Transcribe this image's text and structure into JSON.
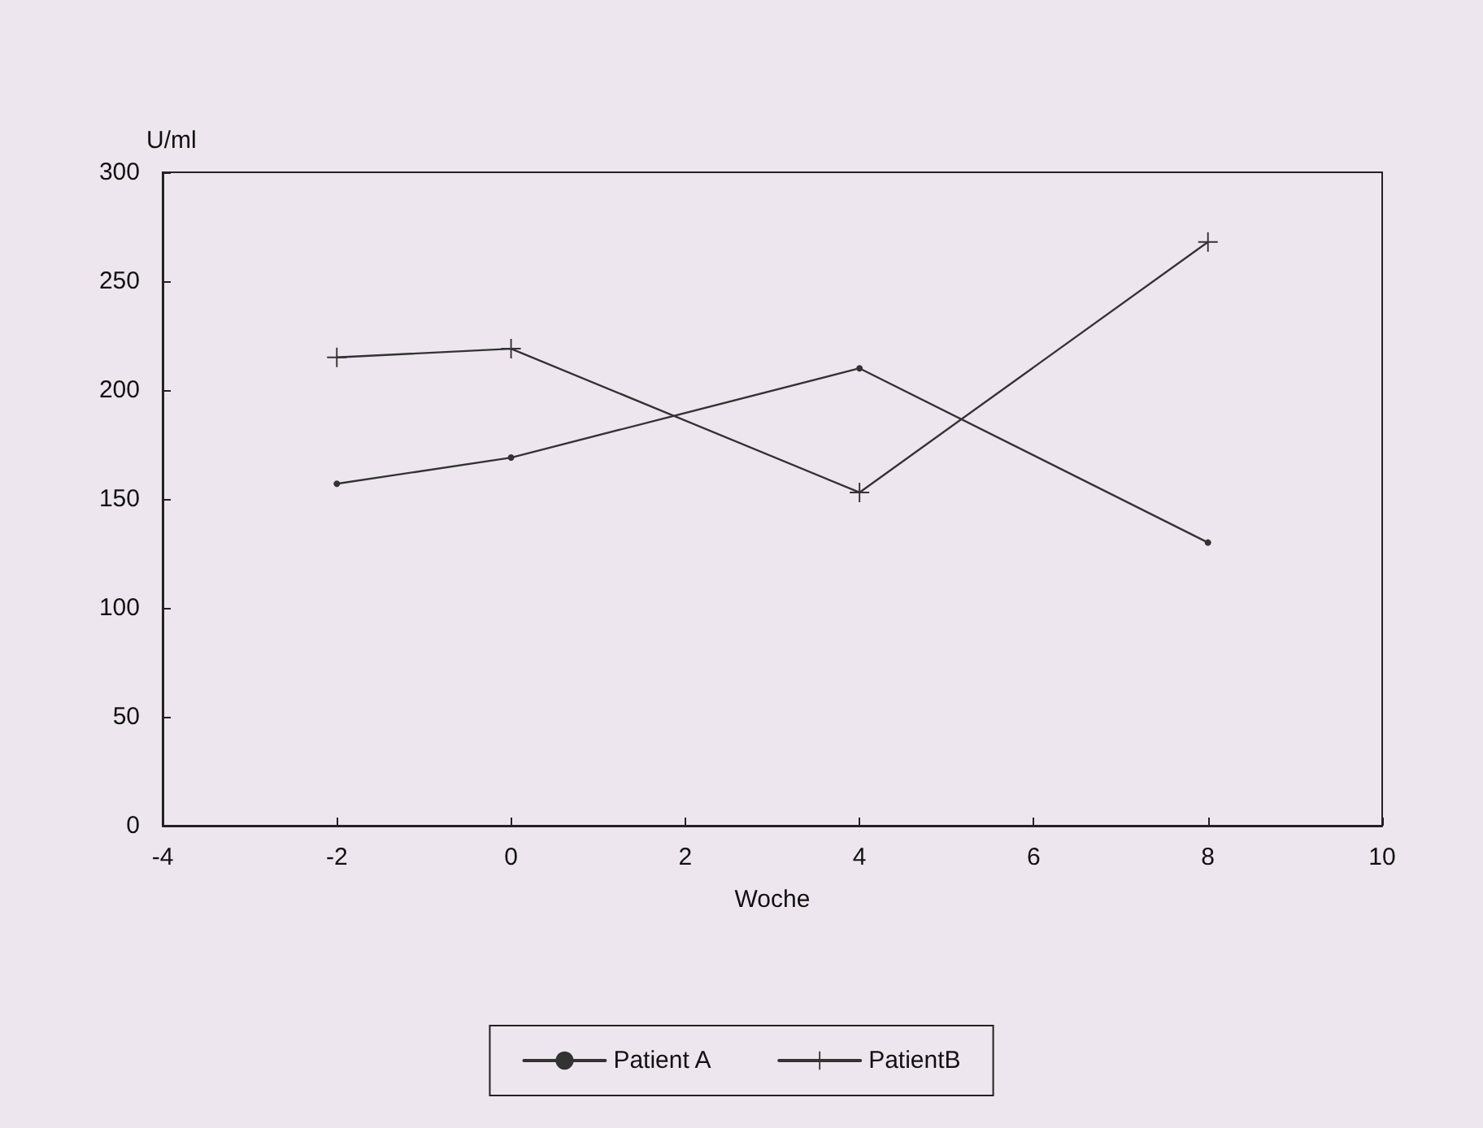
{
  "chart_data": {
    "type": "line",
    "xlabel": "Woche",
    "ylabel": "U/ml",
    "xlim": [
      -4,
      10
    ],
    "xticks": [
      -4,
      -2,
      0,
      2,
      4,
      6,
      8,
      10
    ],
    "ylim": [
      0,
      300
    ],
    "yticks": [
      0,
      50,
      100,
      150,
      200,
      250,
      300
    ],
    "legend": "bottom",
    "line_style": "solid",
    "series": [
      {
        "name": "Patient A",
        "color": "#333333",
        "marker": "circle",
        "x": [
          -2,
          0,
          4,
          8
        ],
        "values": [
          157,
          169,
          210,
          130
        ]
      },
      {
        "name": "PatientB",
        "color": "#333333",
        "marker": "cross",
        "x": [
          -2,
          0,
          4,
          8
        ],
        "values": [
          215,
          219,
          153,
          268
        ]
      }
    ]
  }
}
